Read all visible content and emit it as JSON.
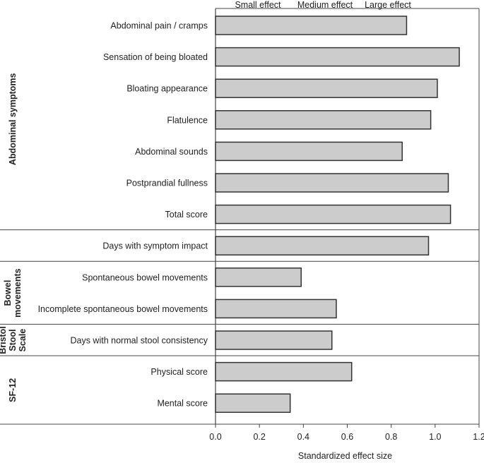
{
  "chart_data": {
    "type": "bar",
    "orientation": "horizontal",
    "xlabel": "Standardized effect size",
    "xlim": [
      0.0,
      1.2
    ],
    "xticks": [
      "0.0",
      "0.2",
      "0.4",
      "0.6",
      "0.8",
      "1.0",
      "1.2"
    ],
    "effect_labels": [
      "Small effect",
      "Medium effect",
      "Large effect"
    ],
    "bar_color": "#cccccc",
    "grid": false,
    "categories": [
      "Abdominal pain / cramps",
      "Sensation of being bloated",
      "Bloating appearance",
      "Flatulence",
      "Abdominal sounds",
      "Postprandial fullness",
      "Total score",
      "Days with symptom impact",
      "Spontaneous bowel movements",
      "Incomplete spontaneous bowel movements",
      "Days with normal stool consistency",
      "Physical score",
      "Mental score"
    ],
    "values": [
      0.87,
      1.11,
      1.01,
      0.98,
      0.85,
      1.06,
      1.07,
      0.97,
      0.39,
      0.55,
      0.53,
      0.62,
      0.34
    ],
    "groups": [
      {
        "label": [
          "Abdominal symptoms"
        ],
        "first": 0,
        "count": 7
      },
      {
        "label": [],
        "first": 7,
        "count": 1
      },
      {
        "label": [
          "Bowel",
          "movements"
        ],
        "first": 8,
        "count": 2
      },
      {
        "label": [
          "Bristol",
          "Stool",
          "Scale"
        ],
        "first": 10,
        "count": 1
      },
      {
        "label": [
          "SF-12"
        ],
        "first": 11,
        "count": 2
      }
    ]
  }
}
